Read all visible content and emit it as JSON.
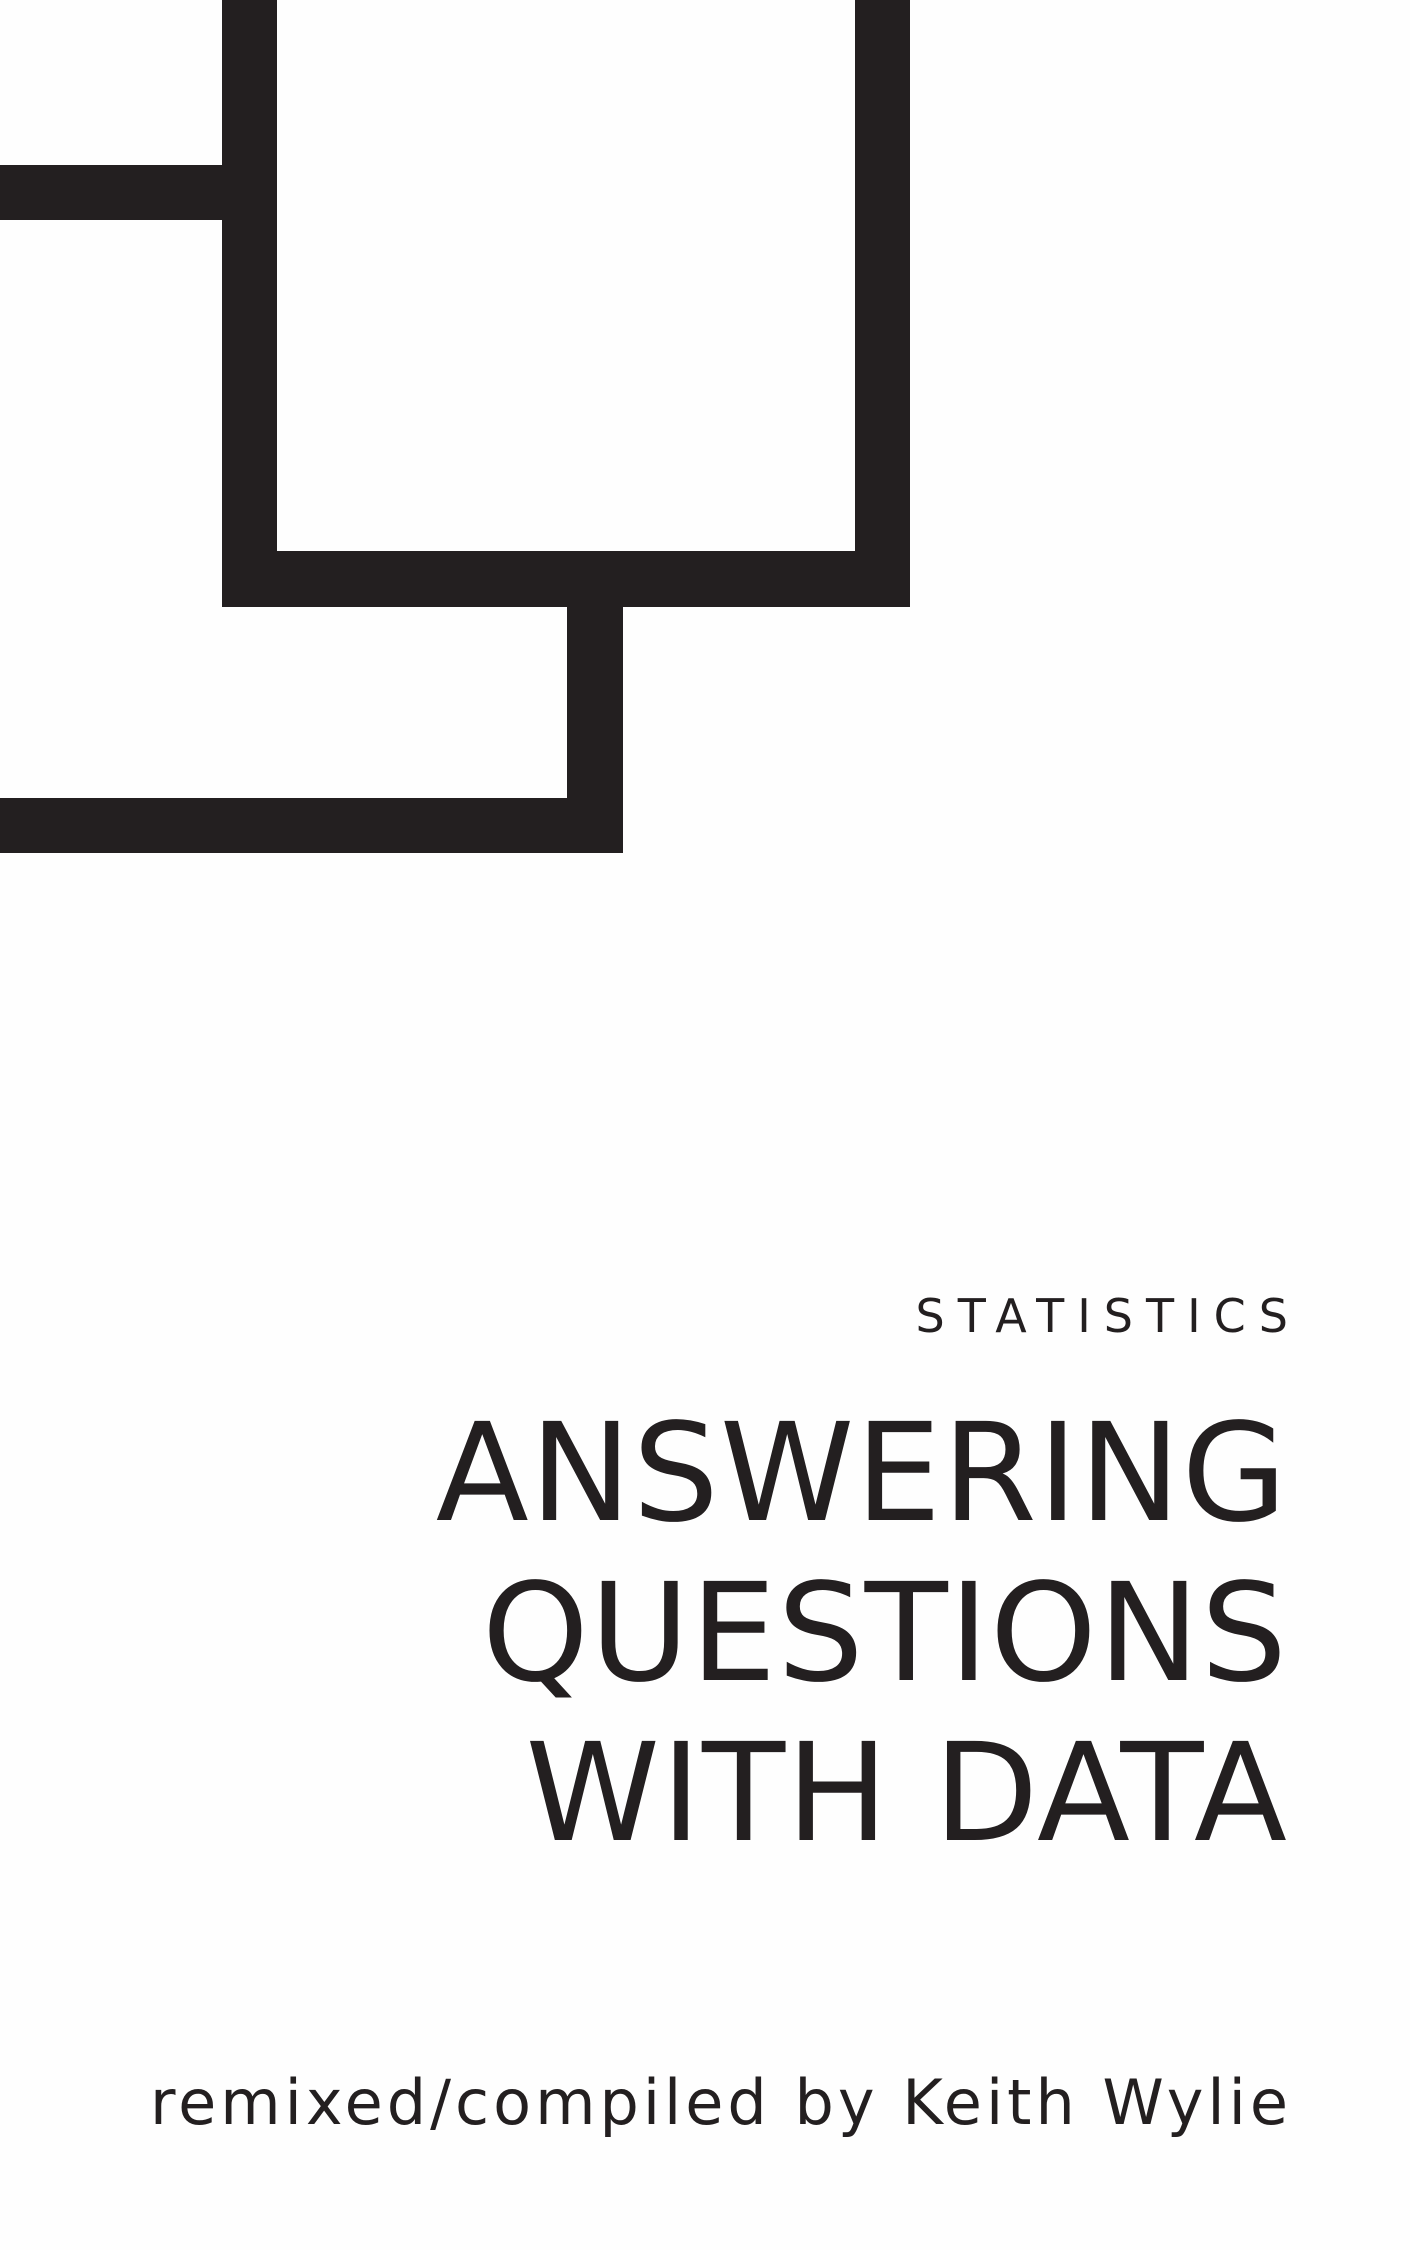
{
  "cover": {
    "category": "STATISTICS",
    "title_lines": [
      "ANSWERING",
      "QUESTIONS",
      "WITH DATA"
    ],
    "author": "remixed/compiled by Keith Wylie"
  },
  "colors": {
    "ink": "#231f20",
    "background": "#fefefe"
  }
}
